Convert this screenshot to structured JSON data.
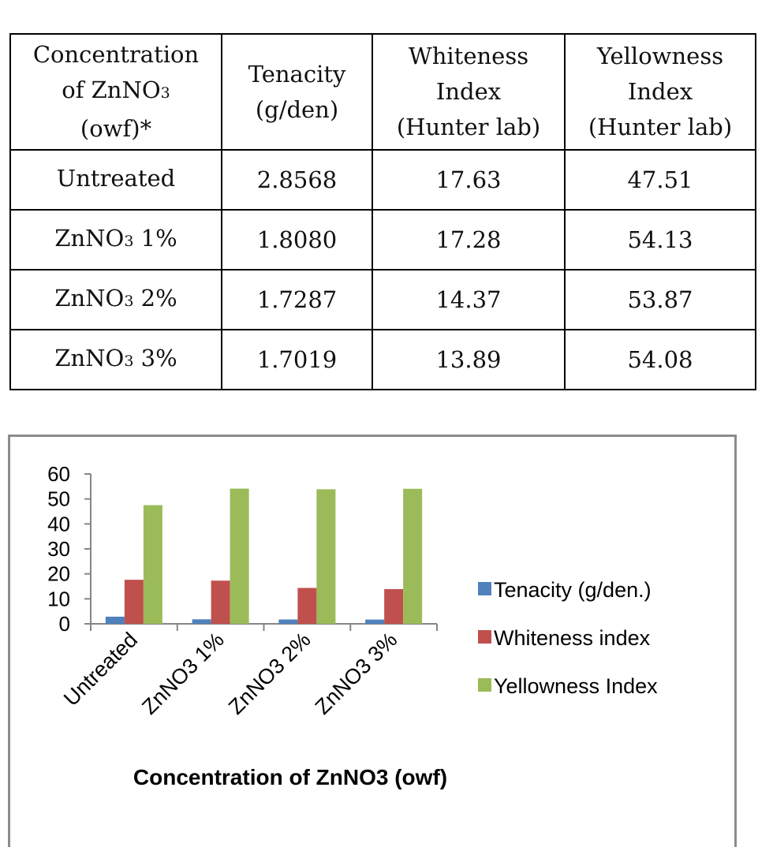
{
  "table": {
    "headers": [
      {
        "lines": [
          "Concentration",
          "of ZnNO",
          "(owf)*"
        ],
        "sub": "3"
      },
      {
        "lines": [
          "Tenacity",
          "(g/den)"
        ]
      },
      {
        "lines": [
          "Whiteness",
          "Index",
          "(Hunter lab)"
        ]
      },
      {
        "lines": [
          "Yellowness",
          "Index",
          "(Hunter lab)"
        ]
      }
    ],
    "rows": [
      {
        "label": "Untreated",
        "label_sub": "",
        "label_suffix": "",
        "tenacity": "2.8568",
        "whiteness": "17.63",
        "yellowness": "47.51"
      },
      {
        "label": "ZnNO",
        "label_sub": "3",
        "label_suffix": " 1%",
        "tenacity": "1.8080",
        "whiteness": "17.28",
        "yellowness": "54.13"
      },
      {
        "label": "ZnNO",
        "label_sub": "3",
        "label_suffix": " 2%",
        "tenacity": "1.7287",
        "whiteness": "14.37",
        "yellowness": "53.87"
      },
      {
        "label": "ZnNO",
        "label_sub": "3",
        "label_suffix": " 3%",
        "tenacity": "1.7019",
        "whiteness": "13.89",
        "yellowness": "54.08"
      }
    ]
  },
  "chart_data": {
    "type": "bar",
    "categories": [
      "Untreated",
      "ZnNO3 1%",
      "ZnNO3 2%",
      "ZnNO3 3%"
    ],
    "series": [
      {
        "name": "Tenacity (g/den.)",
        "color": "#4f81bd",
        "values": [
          2.8568,
          1.808,
          1.7287,
          1.7019
        ]
      },
      {
        "name": "Whiteness index",
        "color": "#c0504d",
        "values": [
          17.63,
          17.28,
          14.37,
          13.89
        ]
      },
      {
        "name": "Yellowness Index",
        "color": "#9bbb59",
        "values": [
          47.51,
          54.13,
          53.87,
          54.08
        ]
      }
    ],
    "title": "",
    "xlabel": "Concentration of ZnNO3 (owf)",
    "ylabel": "",
    "ylim": [
      0,
      60
    ],
    "yticks": [
      0,
      10,
      20,
      30,
      40,
      50,
      60
    ],
    "grid": false,
    "legend": "right"
  }
}
